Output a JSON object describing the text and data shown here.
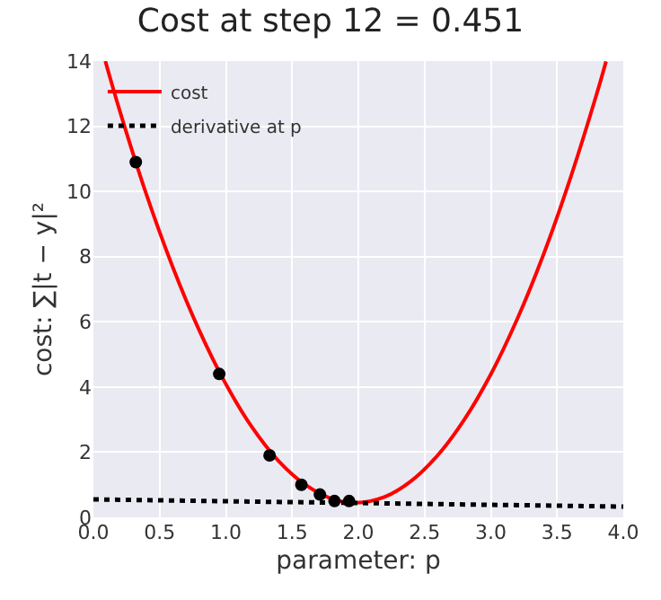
{
  "chart_data": {
    "type": "line",
    "title": "Cost at step 12 = 0.451",
    "xlabel": "parameter: p",
    "ylabel": "cost: ∑|t − y|²",
    "xlim": [
      0,
      4
    ],
    "ylim": [
      0,
      14
    ],
    "xticks": [
      {
        "value": 0,
        "label": "0.0"
      },
      {
        "value": 0.5,
        "label": "0.5"
      },
      {
        "value": 1,
        "label": "1.0"
      },
      {
        "value": 1.5,
        "label": "1.5"
      },
      {
        "value": 2,
        "label": "2.0"
      },
      {
        "value": 2.5,
        "label": "2.5"
      },
      {
        "value": 3,
        "label": "3.0"
      },
      {
        "value": 3.5,
        "label": "3.5"
      },
      {
        "value": 4,
        "label": "4.0"
      }
    ],
    "yticks": [
      0,
      2,
      4,
      6,
      8,
      10,
      12,
      14
    ],
    "grid": true,
    "legend": "top left",
    "series": [
      {
        "name": "cost",
        "color": "#ff0000",
        "marker": "none",
        "line_style": "solid",
        "x": [
          0.09,
          0.2,
          0.4,
          0.6,
          0.8,
          1.0,
          1.2,
          1.4,
          1.6,
          1.8,
          1.98,
          2.2,
          2.4,
          2.6,
          2.8,
          3.0,
          3.2,
          3.4,
          3.6,
          3.8,
          3.87
        ],
        "values": [
          14.0,
          12.46,
          9.91,
          7.67,
          5.73,
          4.09,
          2.75,
          1.72,
          1.0,
          0.57,
          0.45,
          0.63,
          1.12,
          1.91,
          3.0,
          4.39,
          6.09,
          8.09,
          10.4,
          13.0,
          13.99
        ]
      },
      {
        "name": "derivative at p",
        "color": "#000000",
        "marker": "none",
        "line_style": "dotted",
        "x": [
          0,
          4
        ],
        "values": [
          0.55,
          0.33
        ]
      },
      {
        "type": "scatter",
        "color": "#000000",
        "marker": "circle",
        "x": [
          0.32,
          0.95,
          1.33,
          1.57,
          1.71,
          1.82,
          1.93
        ],
        "values": [
          10.9,
          4.4,
          1.9,
          1.0,
          0.7,
          0.5,
          0.5
        ]
      }
    ]
  }
}
